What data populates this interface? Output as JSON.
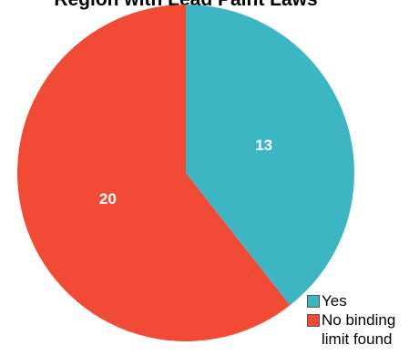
{
  "chart_data": {
    "type": "pie",
    "title": "Region with Lead Paint Laws",
    "slices": [
      {
        "label": "Yes",
        "value": 13,
        "color": "#3db6c3"
      },
      {
        "label": "No binding\nlimit found",
        "value": 20,
        "color": "#f24b35"
      }
    ],
    "start_angle_deg": 0,
    "direction": "clockwise",
    "legend_position": "bottom-right",
    "data_labels": true
  }
}
